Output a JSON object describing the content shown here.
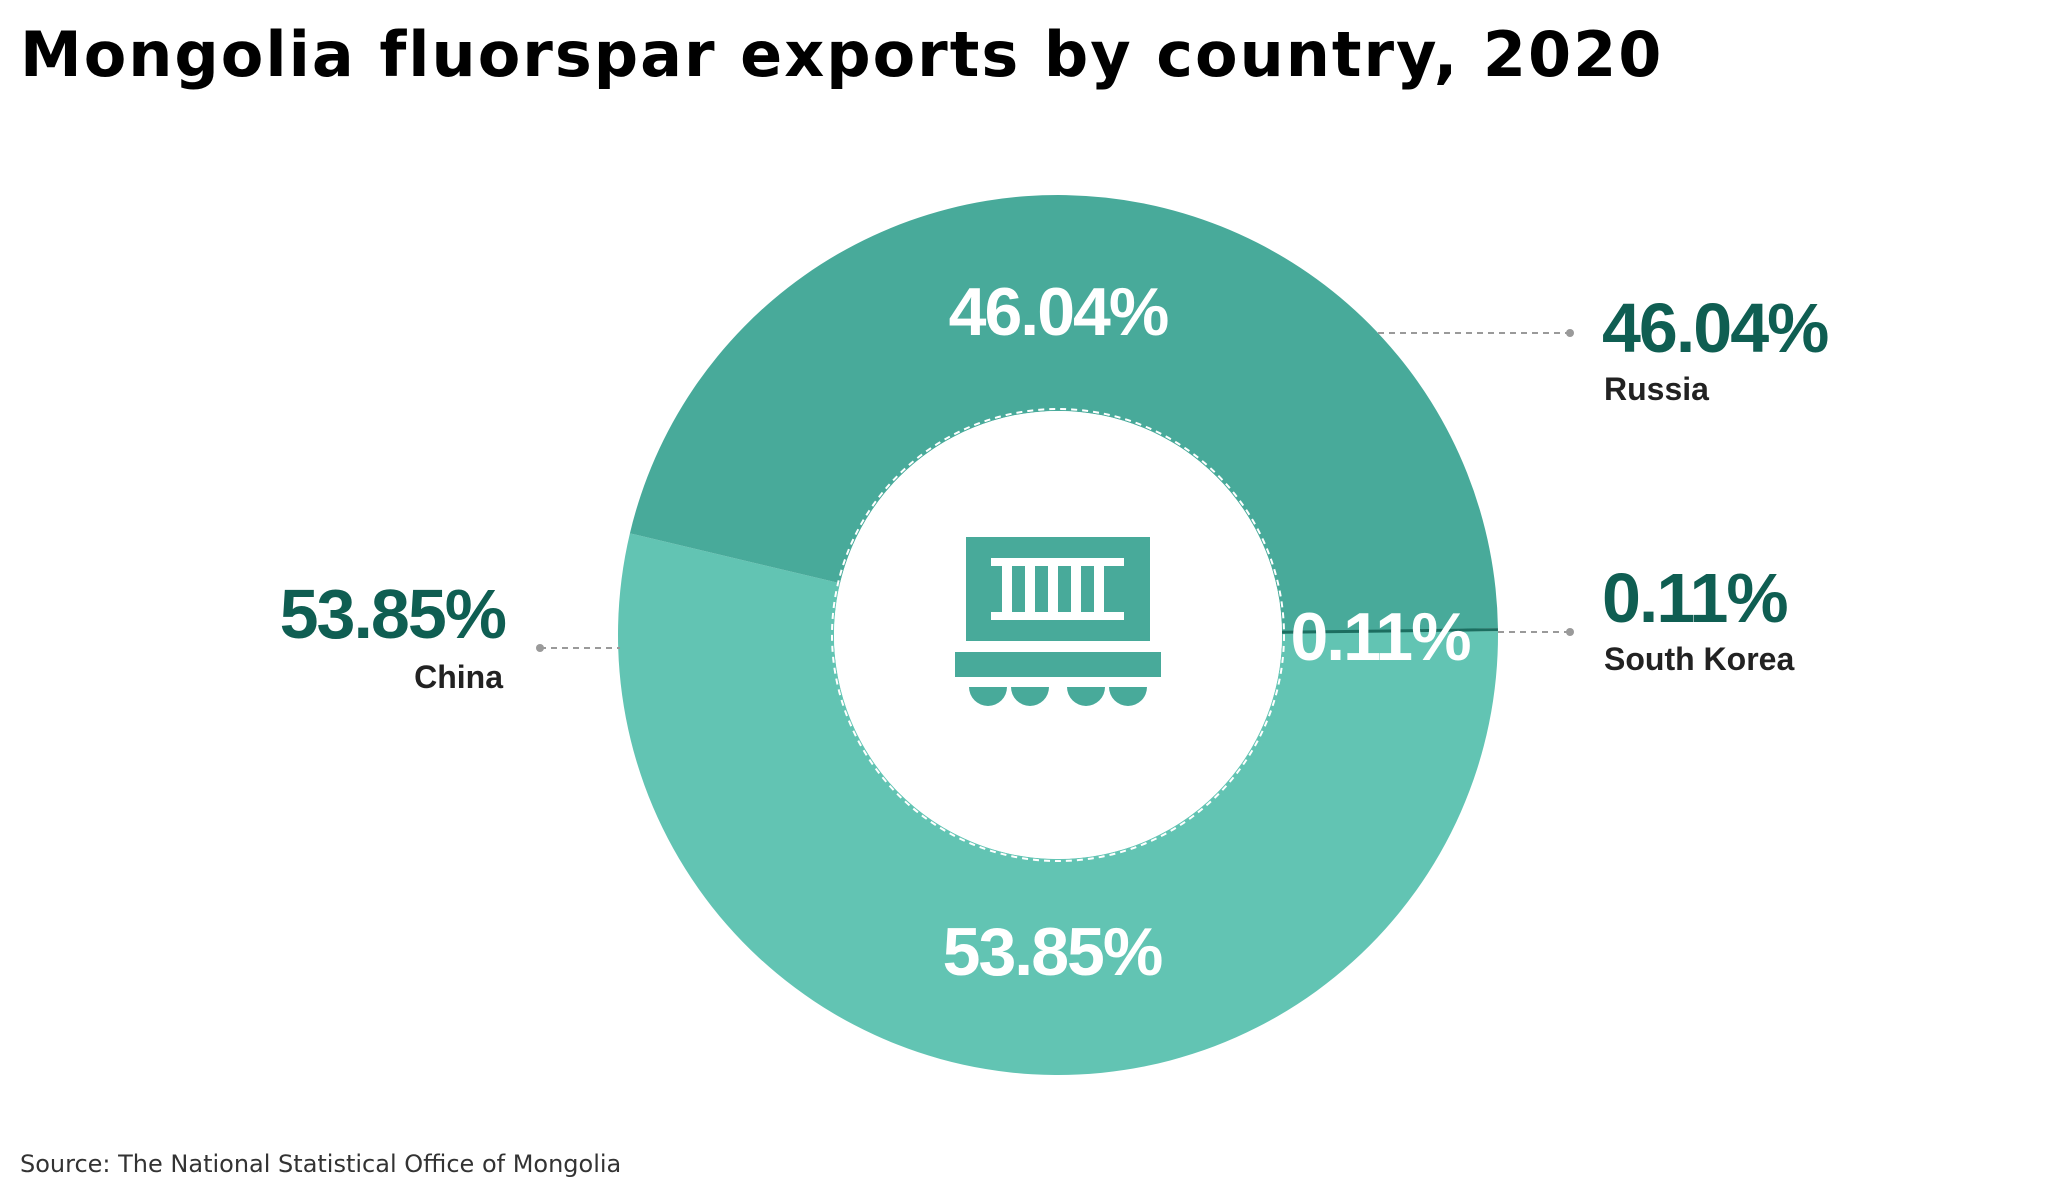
{
  "chart_data": {
    "type": "pie",
    "title": "Mongolia fluorspar exports by country, 2020",
    "donut": true,
    "slices": [
      {
        "label": "Russia",
        "value": 46.04,
        "value_label": "46.04%",
        "color": "#48aa9a"
      },
      {
        "label": "South Korea",
        "value": 0.11,
        "value_label": "0.11%",
        "color": "#1c6e60"
      },
      {
        "label": "China",
        "value": 53.85,
        "value_label": "53.85%",
        "color": "#62c4b3"
      }
    ],
    "center_icon": "freight-train-icon"
  },
  "source": "Source: The National Statistical Office of Mongolia",
  "colors": {
    "callout_value": "#0f5e52",
    "callout_label": "#222222",
    "inner_label": "#ffffff",
    "icon": "#48aa9a"
  }
}
